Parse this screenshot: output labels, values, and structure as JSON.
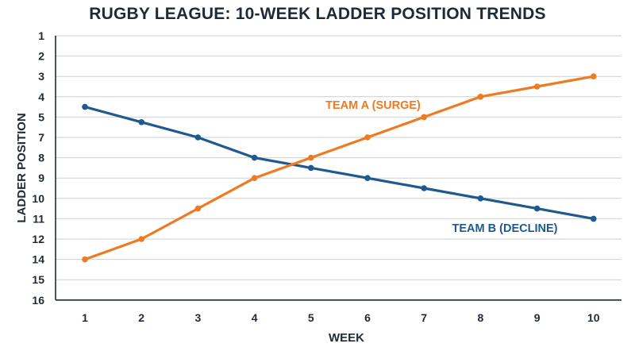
{
  "chart_data": {
    "type": "line",
    "title": "RUGBY LEAGUE: 10-WEEK LADDER POSITION TRENDS",
    "xlabel": "WEEK",
    "ylabel": "LADDER POSITION",
    "x": [
      1,
      2,
      3,
      4,
      5,
      6,
      7,
      8,
      9,
      10
    ],
    "y_ticks": [
      "1",
      "2",
      "3",
      "4",
      "5",
      "7",
      "8",
      "9",
      "10",
      "11",
      "12",
      "14",
      "15",
      "16"
    ],
    "y_axis": "categorical, inverted (1 at top, 16 at bottom)",
    "grid": "horizontal",
    "series": [
      {
        "name": "TEAM A (SURGE)",
        "color": "#ee7a22",
        "values": [
          14,
          12,
          10.5,
          9,
          8,
          7,
          5,
          4,
          3.5,
          3
        ]
      },
      {
        "name": "TEAM B (DECLINE)",
        "color": "#1f5a8e",
        "values": [
          4.5,
          5.5,
          7,
          8,
          8.5,
          9,
          9.5,
          10,
          10.5,
          11
        ]
      }
    ]
  }
}
